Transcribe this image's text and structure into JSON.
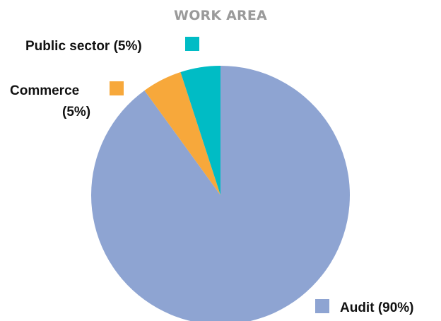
{
  "chart_data": {
    "type": "pie",
    "title": "WORK AREA",
    "slices": [
      {
        "name": "Audit",
        "value": 90,
        "label_line1": "Audit (90%)",
        "label_line2": "",
        "color": "#8ea4d2"
      },
      {
        "name": "Commerce",
        "value": 5,
        "label_line1": "Commerce",
        "label_line2": "(5%)",
        "color": "#f7a83b"
      },
      {
        "name": "Public sector",
        "value": 5,
        "label_line1": "Public sector (5%)",
        "label_line2": "",
        "color": "#00bcc5"
      }
    ],
    "legend": "labels beside slices"
  }
}
